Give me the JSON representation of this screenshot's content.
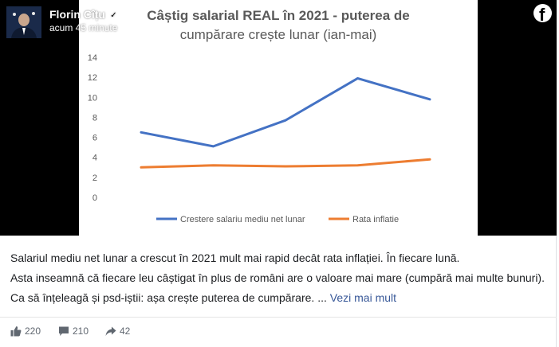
{
  "header": {
    "author_name": "Florin Cîțu",
    "timestamp": "acum 45 minute"
  },
  "post": {
    "paragraphs": [
      "Salariul mediu net lunar a crescut în 2021 mult mai rapid decât rata inflației. În fiecare lună.",
      "Asta inseamnă că fiecare leu câștigat în plus de români are o valoare mai mare (cumpără mai multe bunuri).",
      "Ca să înțeleagă și psd-iștii: așa crește puterea de cumpărare. ..."
    ],
    "see_more_label": "Vezi mai mult"
  },
  "stats": {
    "likes": "220",
    "comments": "210",
    "shares": "42"
  },
  "icons": {
    "verified": "verified-badge-icon",
    "facebook": "facebook-logo-icon",
    "like": "thumbs-up-icon",
    "comment": "comment-bubble-icon",
    "share": "share-arrow-icon"
  },
  "colors": {
    "salary_series": "#4472c4",
    "inflation_series": "#ed7d31",
    "link": "#385898"
  },
  "chart_data": {
    "type": "line",
    "title_line1": "Câștig salarial REAL în 2021 - puterea de",
    "title_line2": "cumpărare crește lunar (ian-mai)",
    "ylim": [
      0,
      14
    ],
    "yticks": [
      "14",
      "12",
      "10",
      "8",
      "6",
      "4",
      "2",
      "0"
    ],
    "grid": false,
    "legend_position": "bottom",
    "series": [
      {
        "name": "Crestere salariu mediu net lunar",
        "color": "#4472c4",
        "values": [
          6.5,
          5.1,
          7.7,
          11.9,
          9.8
        ]
      },
      {
        "name": "Rata inflatie",
        "color": "#ed7d31",
        "values": [
          3.0,
          3.2,
          3.1,
          3.2,
          3.8
        ]
      }
    ]
  }
}
